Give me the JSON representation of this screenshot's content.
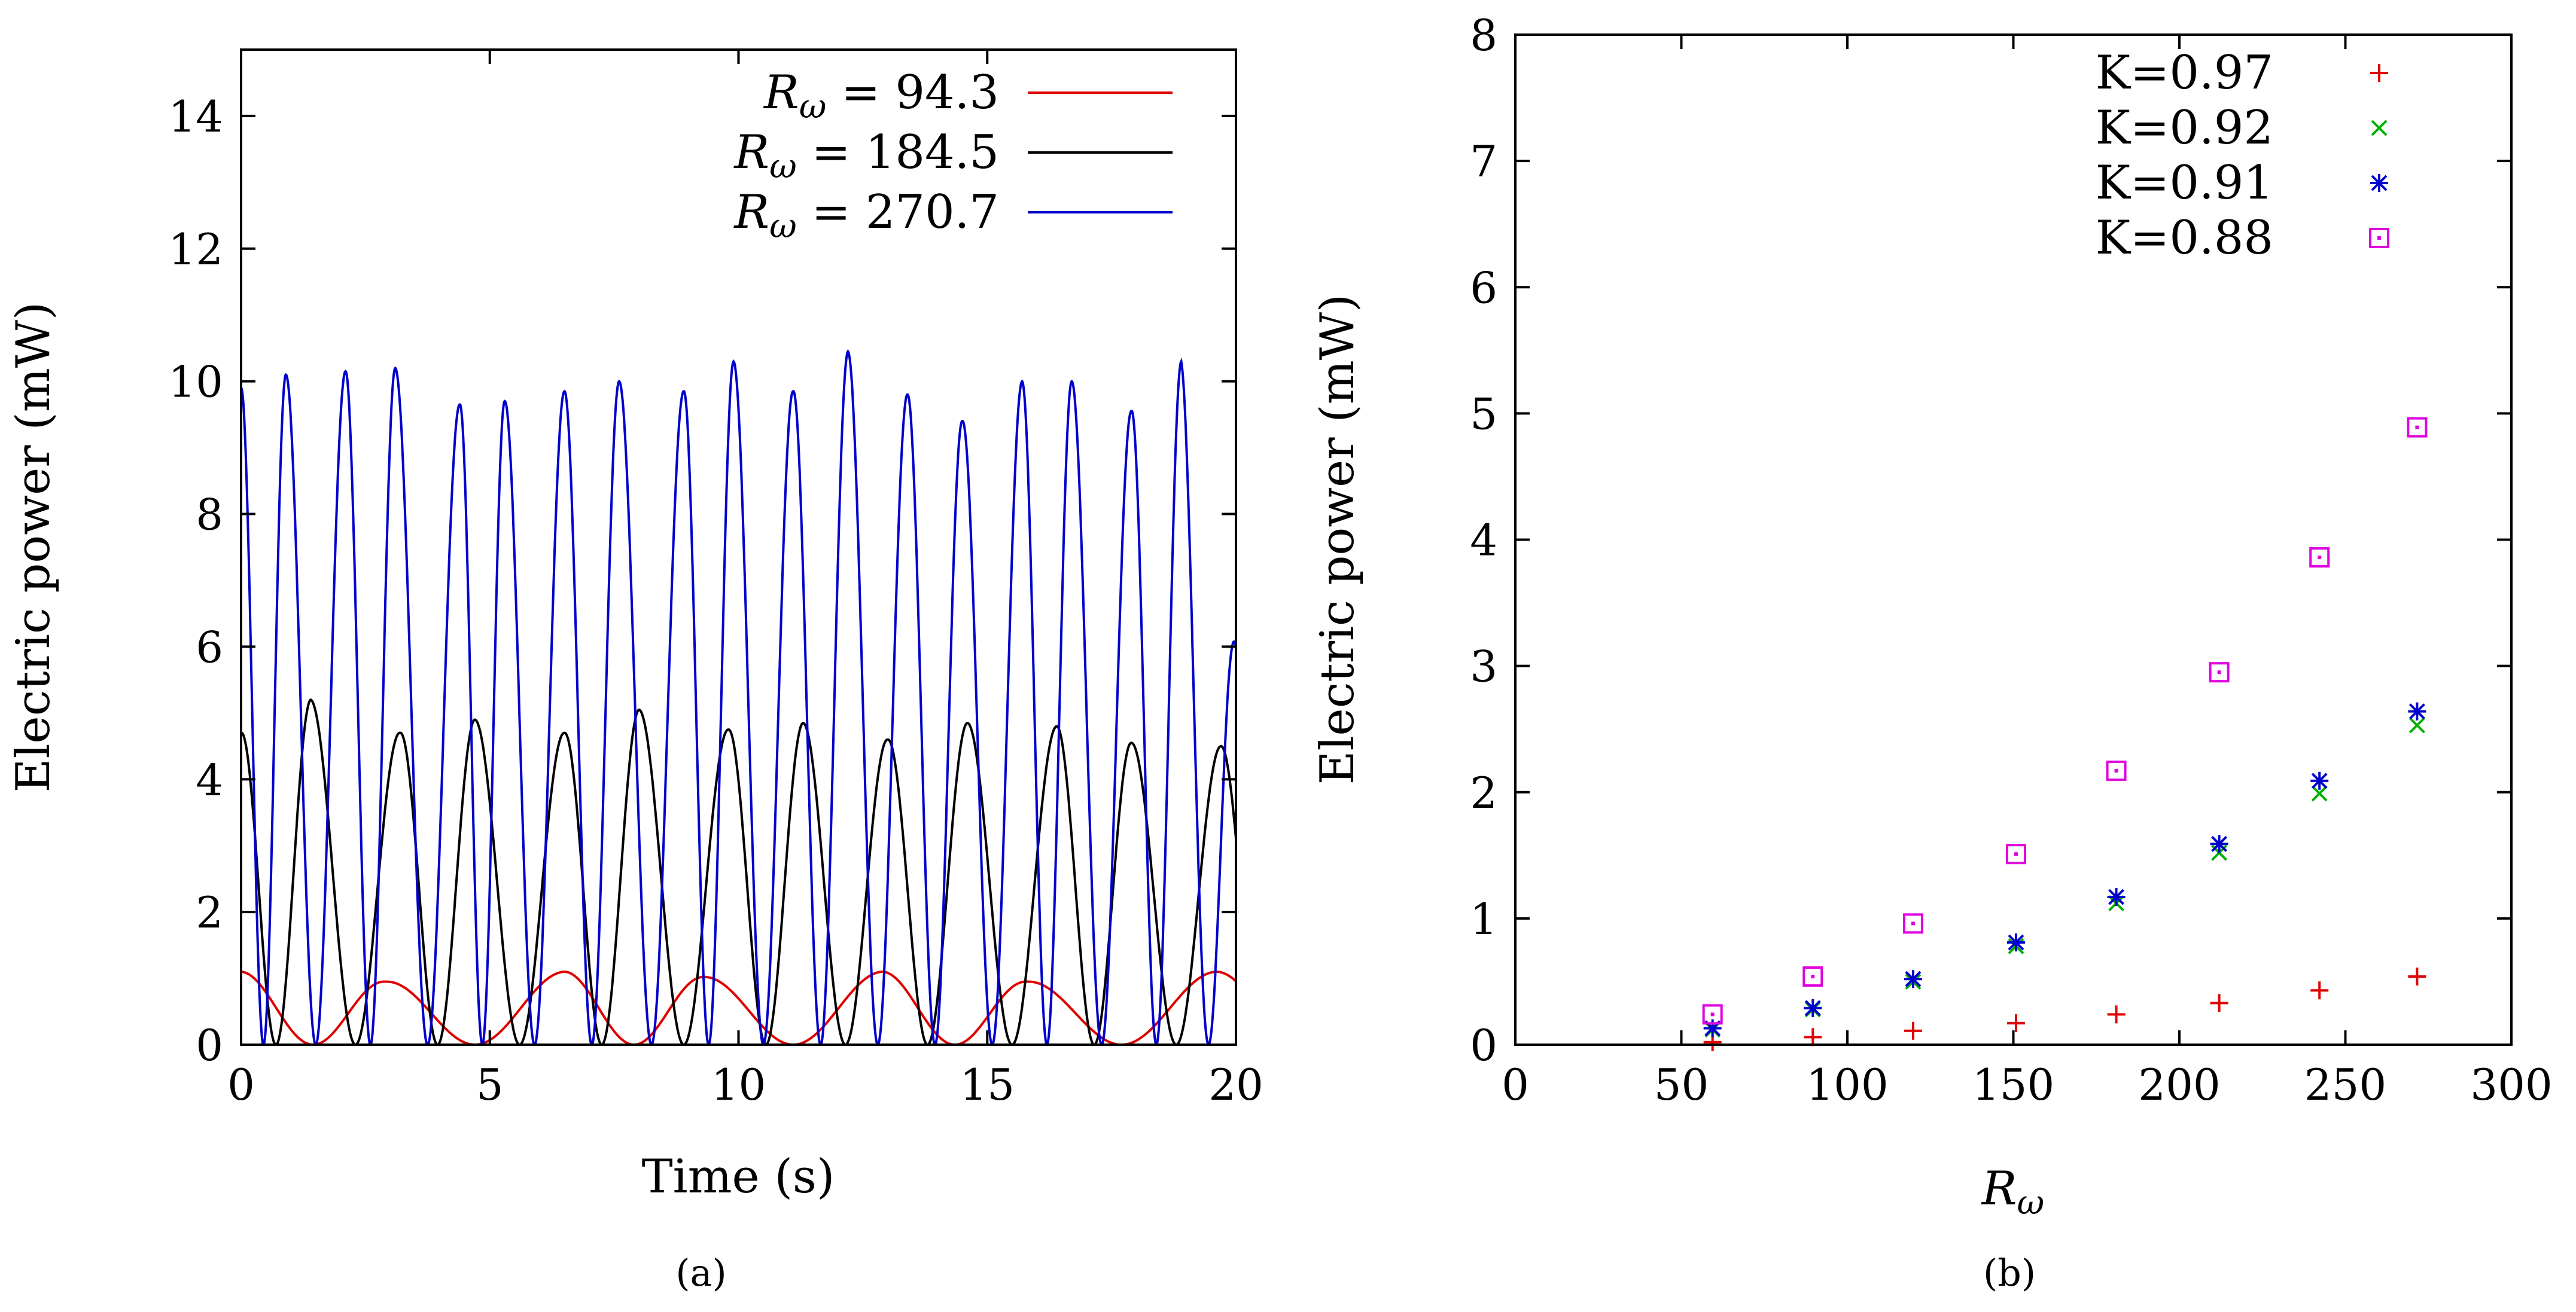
{
  "figure": {
    "panel_labels": [
      "(a)",
      "(b)"
    ]
  },
  "chart_data": [
    {
      "type": "line",
      "panel": "(a)",
      "xlabel": "Time (s)",
      "ylabel": "Electric power (mW)",
      "xlim": [
        0,
        20
      ],
      "ylim": [
        0,
        15
      ],
      "xticks": [
        0,
        5,
        10,
        15,
        20
      ],
      "yticks": [
        0,
        2,
        4,
        6,
        8,
        10,
        12,
        14
      ],
      "grid": false,
      "legend_position": "top-right",
      "series": [
        {
          "name": "R_ω = 94.3",
          "legend_symbol": "R",
          "legend_subscript": "ω",
          "legend_value": " = 94.3",
          "color": "#e00000",
          "kind": "rectified-sine",
          "amplitude": 1.05,
          "half_period_s": 3.4,
          "phase_s": 0.0,
          "peaks_t": [
            0.0,
            2.9,
            6.5,
            9.3,
            12.9,
            15.8,
            19.6
          ],
          "peaks_y": [
            1.1,
            0.95,
            1.1,
            1.02,
            1.1,
            0.95,
            1.1
          ]
        },
        {
          "name": "R_ω = 184.5",
          "legend_symbol": "R",
          "legend_subscript": "ω",
          "legend_value": " = 184.5",
          "color": "#000000",
          "kind": "rectified-sine",
          "amplitude": 4.7,
          "half_period_s": 1.6,
          "phase_s": 0.0,
          "peaks_t": [
            0.0,
            1.4,
            3.2,
            4.7,
            6.5,
            8.0,
            9.8,
            11.3,
            13.0,
            14.6,
            16.4,
            17.9,
            19.7
          ],
          "peaks_y": [
            4.7,
            5.2,
            4.7,
            4.9,
            4.7,
            5.05,
            4.75,
            4.85,
            4.6,
            4.85,
            4.8,
            4.55,
            4.5
          ]
        },
        {
          "name": "R_ω = 270.7",
          "legend_symbol": "R",
          "legend_subscript": "ω",
          "legend_value": " = 270.7",
          "color": "#0000cc",
          "kind": "rectified-sine",
          "amplitude": 10.0,
          "half_period_s": 1.04,
          "phase_s": 0.0,
          "peaks_t": [
            0.0,
            0.9,
            2.1,
            3.1,
            4.4,
            5.3,
            6.5,
            7.6,
            8.9,
            9.9,
            11.1,
            12.2,
            13.4,
            14.5,
            15.7,
            16.7,
            17.9,
            18.9,
            20.0
          ],
          "peaks_y": [
            9.9,
            10.1,
            10.15,
            10.2,
            9.65,
            9.7,
            9.85,
            10.0,
            9.85,
            10.3,
            9.85,
            10.45,
            9.8,
            9.4,
            10.0,
            10.0,
            9.55,
            10.3,
            6.0
          ]
        }
      ]
    },
    {
      "type": "scatter",
      "panel": "(b)",
      "xlabel_symbol": "R",
      "xlabel_subscript": "ω",
      "ylabel": "Electric power (mW)",
      "xlim": [
        0,
        300
      ],
      "ylim": [
        0,
        8
      ],
      "xticks": [
        0,
        50,
        100,
        150,
        200,
        250,
        300
      ],
      "yticks": [
        0,
        1,
        2,
        3,
        4,
        5,
        6,
        7,
        8
      ],
      "grid": false,
      "legend_position": "top-right",
      "x": [
        59.4,
        89.6,
        119.8,
        150.8,
        181.0,
        212.0,
        242.2,
        271.6
      ],
      "series": [
        {
          "name": "K=0.97",
          "marker": "plus",
          "color": "#e00000",
          "values": [
            0.02,
            0.06,
            0.11,
            0.17,
            0.24,
            0.33,
            0.43,
            0.54
          ]
        },
        {
          "name": "K=0.92",
          "marker": "cross",
          "color": "#00b000",
          "values": [
            0.12,
            0.28,
            0.5,
            0.78,
            1.12,
            1.52,
            1.99,
            2.53
          ]
        },
        {
          "name": "K=0.91",
          "marker": "star",
          "color": "#0000cc",
          "values": [
            0.13,
            0.29,
            0.52,
            0.81,
            1.17,
            1.59,
            2.09,
            2.64
          ]
        },
        {
          "name": "K=0.88",
          "marker": "box",
          "color": "#e000e0",
          "values": [
            0.24,
            0.54,
            0.96,
            1.51,
            2.17,
            2.95,
            3.86,
            4.89
          ]
        }
      ]
    }
  ]
}
